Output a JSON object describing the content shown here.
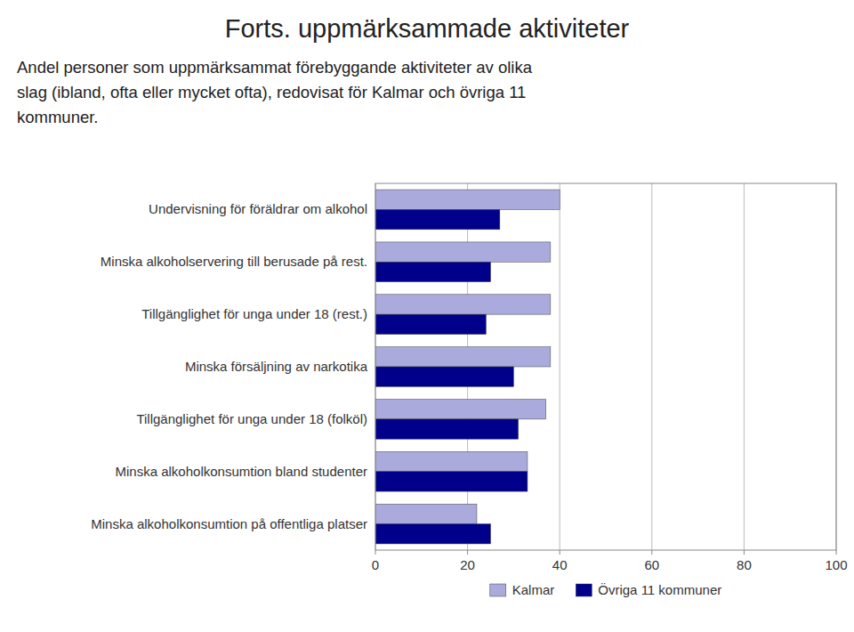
{
  "chart_data": {
    "type": "bar",
    "orientation": "horizontal",
    "title": "Forts. uppmärksammade aktiviteter",
    "subtitle": [
      "Andel personer som uppmärksammat förebyggande aktiviteter av olika",
      "slag (ibland, ofta eller mycket ofta), redovisat för Kalmar och övriga 11",
      "kommuner."
    ],
    "categories": [
      "Undervisning för föräldrar om alkohol",
      "Minska alkoholservering till berusade på rest.",
      "Tillgänglighet för unga under 18 (rest.)",
      "Minska försäljning av narkotika",
      "Tillgänglighet för unga under 18 (folköl)",
      "Minska alkoholkonsumtion bland studenter",
      "Minska alkoholkonsumtion på offentliga platser"
    ],
    "series": [
      {
        "name": "Kalmar",
        "color": "#aaaadd",
        "values": [
          40,
          38,
          38,
          38,
          37,
          33,
          22
        ]
      },
      {
        "name": "Övriga 11 kommuner",
        "color": "#00008b",
        "values": [
          27,
          25,
          24,
          30,
          31,
          33,
          25
        ]
      }
    ],
    "xlim": [
      0,
      100
    ],
    "xticks": [
      0,
      20,
      40,
      60,
      80,
      100
    ],
    "grid": true,
    "legend": "bottom"
  }
}
